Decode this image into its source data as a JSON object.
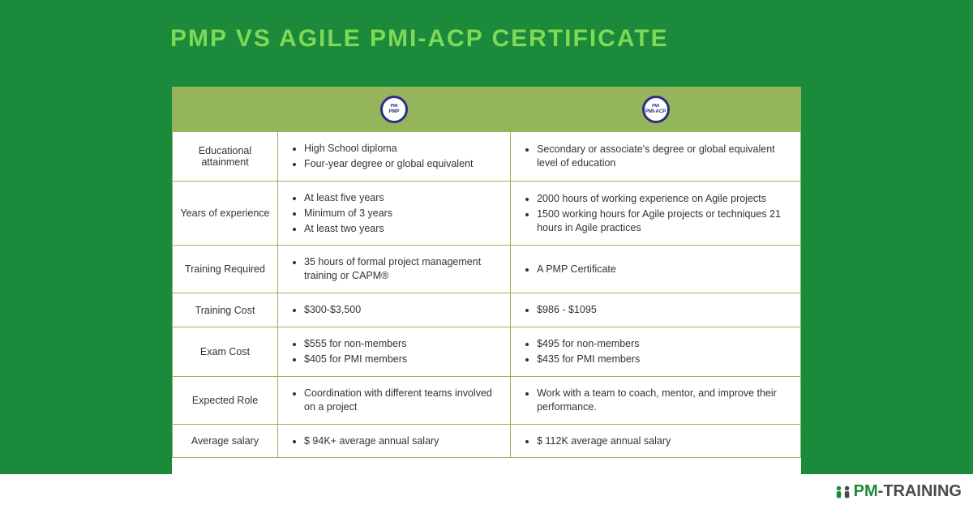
{
  "header": {
    "title": "PMP VS AGILE PMI-ACP CERTIFICATE"
  },
  "colors": {
    "brand_green": "#1b8a3a",
    "accent_green": "#7ed957",
    "table_border": "#95b55d",
    "table_header_bg": "#95b55d",
    "badge_ring": "#2d2e83",
    "text": "#333333",
    "bg": "#ffffff"
  },
  "badges": {
    "pmp": {
      "top": "PMI",
      "label": "PMP"
    },
    "acp": {
      "top": "PMI",
      "label": "PMI-ACP"
    }
  },
  "rows": [
    {
      "label": "Educational attainment",
      "pmp": [
        "High School diploma",
        "Four-year degree or global equivalent"
      ],
      "acp": [
        "Secondary or associate's degree or global equivalent level of education"
      ]
    },
    {
      "label": "Years of experience",
      "pmp": [
        "At least five years",
        "Minimum of 3 years",
        "At least two years"
      ],
      "acp": [
        "2000 hours of working experience on Agile projects",
        "1500 working hours for Agile projects or techniques 21 hours in Agile practices"
      ]
    },
    {
      "label": "Training Required",
      "pmp": [
        "35 hours of formal project management training or CAPM®"
      ],
      "acp": [
        "A PMP Certificate"
      ]
    },
    {
      "label": "Training Cost",
      "pmp": [
        "$300-$3,500"
      ],
      "acp": [
        "$986 - $1095"
      ]
    },
    {
      "label": "Exam Cost",
      "pmp": [
        "$555 for non-members",
        "$405 for PMI members"
      ],
      "acp": [
        "$495 for non-members",
        "$435 for PMI members"
      ]
    },
    {
      "label": "Expected Role",
      "pmp": [
        "Coordination with different teams involved on a project"
      ],
      "acp": [
        "Work with a team to coach, mentor, and improve their performance."
      ]
    },
    {
      "label": "Average salary",
      "pmp": [
        "$ 94K+ average annual salary"
      ],
      "acp": [
        "$ 112K average annual salary"
      ]
    }
  ],
  "logo": {
    "pm": "PM",
    "dash": "-",
    "training": "TRAINING"
  }
}
